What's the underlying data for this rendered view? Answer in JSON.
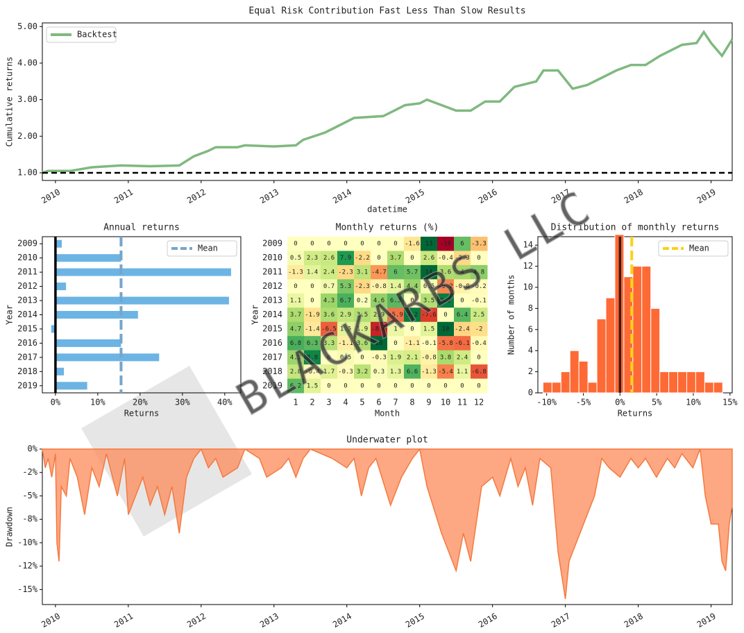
{
  "watermark": "BLACKARBS LLC",
  "chart_data": [
    {
      "type": "line",
      "title": "Equal Risk Contribution Fast Less Than Slow Results",
      "xlabel": "datetime",
      "ylabel": "Cumulative returns",
      "x": [
        2009.82,
        2009.9,
        2010.2,
        2010.5,
        2010.9,
        2011.3,
        2011.7,
        2011.9,
        2012.1,
        2012.2,
        2012.5,
        2012.6,
        2013.0,
        2013.3,
        2013.4,
        2013.7,
        2013.9,
        2014.1,
        2014.5,
        2014.7,
        2014.8,
        2015.0,
        2015.1,
        2015.5,
        2015.7,
        2015.9,
        2016.1,
        2016.3,
        2016.6,
        2016.7,
        2016.9,
        2017.0,
        2017.1,
        2017.3,
        2017.5,
        2017.7,
        2017.9,
        2018.1,
        2018.3,
        2018.6,
        2018.8,
        2018.9,
        2019.0,
        2019.15,
        2019.29
      ],
      "series": [
        {
          "name": "Backtest",
          "color": "#7fb97f",
          "values": [
            1.0,
            1.05,
            1.05,
            1.15,
            1.2,
            1.18,
            1.2,
            1.45,
            1.6,
            1.7,
            1.7,
            1.75,
            1.72,
            1.75,
            1.9,
            2.1,
            2.3,
            2.5,
            2.55,
            2.75,
            2.85,
            2.9,
            3.0,
            2.7,
            2.7,
            2.95,
            2.95,
            3.35,
            3.5,
            3.8,
            3.8,
            3.55,
            3.3,
            3.4,
            3.6,
            3.8,
            3.95,
            3.95,
            4.2,
            4.5,
            4.55,
            4.85,
            4.55,
            4.2,
            4.65
          ]
        }
      ],
      "hline": 1,
      "xlim": [
        2009.82,
        2019.29
      ],
      "xticks": [
        2010,
        2011,
        2012,
        2013,
        2014,
        2015,
        2016,
        2017,
        2018,
        2019
      ],
      "ylim": [
        0.79,
        5.1
      ],
      "yticks": [
        {
          "value": 1,
          "label": "1.00"
        },
        {
          "value": 2,
          "label": "2.00"
        },
        {
          "value": 3,
          "label": "3.00"
        },
        {
          "value": 4,
          "label": "4.00"
        },
        {
          "value": 5,
          "label": "5.00"
        }
      ],
      "legend": "upper left"
    },
    {
      "type": "barh",
      "title": "Annual returns",
      "xlabel": "Returns",
      "ylabel": "Year",
      "color": "#6cb4e4",
      "categories": [
        "2009",
        "2010",
        "2011",
        "2012",
        "2013",
        "2014",
        "2015",
        "2016",
        "2017",
        "2018",
        "2019"
      ],
      "values": [
        1.5,
        15.5,
        41.5,
        2.5,
        41,
        19.5,
        -1,
        15.5,
        24.5,
        2,
        7.5
      ],
      "mean": {
        "name": "Mean",
        "value": 15.5,
        "color": "#76a5cc"
      },
      "xlim": [
        -3.1,
        43.8
      ],
      "xticks": [
        {
          "value": 0,
          "label": "0%"
        },
        {
          "value": 10,
          "label": "10%"
        },
        {
          "value": 20,
          "label": "20%"
        },
        {
          "value": 30,
          "label": "30%"
        },
        {
          "value": 40,
          "label": "40%"
        }
      ],
      "legend": "upper right"
    },
    {
      "type": "heatmap",
      "title": "Monthly returns (%)",
      "xlabel": "Month",
      "ylabel": "Year",
      "colormap": "RdYlGn",
      "clim": [
        -10,
        10
      ],
      "rows": [
        "2009",
        "2010",
        "2011",
        "2012",
        "2013",
        "2014",
        "2015",
        "2016",
        "2017",
        "2018",
        "2019"
      ],
      "columns": [
        1,
        2,
        3,
        4,
        5,
        6,
        7,
        8,
        9,
        10,
        11,
        12
      ],
      "values": [
        [
          0,
          0,
          0,
          0,
          0,
          0,
          0,
          -1.6,
          13,
          -10,
          6,
          -3.3
        ],
        [
          0.5,
          2.3,
          2.6,
          7.9,
          -2.2,
          0,
          3.7,
          0,
          2.6,
          -0.4,
          -2.3,
          0
        ],
        [
          -1.3,
          1.4,
          2.4,
          -2.3,
          3.1,
          -4.7,
          6,
          5.7,
          14,
          3.6,
          4,
          4.8
        ],
        [
          0,
          0,
          0.7,
          5.3,
          -2.3,
          -0.8,
          1.4,
          4.4,
          0.5,
          -5.2,
          -0.8,
          -0.2
        ],
        [
          1.1,
          0,
          4.3,
          6.7,
          0.2,
          4.6,
          6.3,
          0,
          3.5,
          9.2,
          0,
          -0.1
        ],
        [
          3.7,
          -1.9,
          3.6,
          2.9,
          3.5,
          2.9,
          -5.9,
          9.2,
          -7.6,
          0,
          6.4,
          2.5
        ],
        [
          4.7,
          -1.4,
          -6.5,
          1.5,
          1.9,
          -8.6,
          1,
          0,
          1.5,
          10,
          -2.4,
          -2
        ],
        [
          6.8,
          6.3,
          3.3,
          -1.1,
          3.6,
          10,
          0,
          -1.1,
          -0.1,
          -5.8,
          -6.1,
          -0.4
        ],
        [
          4.3,
          8.8,
          0,
          0.5,
          0,
          -0.3,
          1.9,
          2.1,
          -0.8,
          3.8,
          2.4,
          0
        ],
        [
          2.8,
          -0.4,
          1.7,
          -0.3,
          3.2,
          0.3,
          1.3,
          6.6,
          -1.3,
          -5.4,
          1.1,
          -6.8
        ],
        [
          6.2,
          1.5,
          0,
          0,
          0,
          0,
          0,
          0,
          0,
          0,
          0,
          0
        ]
      ]
    },
    {
      "type": "histogram",
      "title": "Distribution of monthly returns",
      "xlabel": "Returns",
      "ylabel": "Number of months",
      "color": "#fe6a35",
      "bins": [
        -10.5,
        -9.275,
        -8.05,
        -6.825,
        -5.6,
        -4.375,
        -3.15,
        -1.925,
        -0.7,
        0.525,
        1.75,
        2.975,
        4.2,
        5.425,
        6.65,
        7.875,
        9.1,
        10.325,
        11.55,
        12.775,
        14.0
      ],
      "values": [
        1,
        1,
        2,
        4,
        3,
        1,
        7,
        9,
        15,
        11,
        12,
        12,
        8,
        2,
        2,
        2,
        2,
        2,
        1,
        1
      ],
      "mean": {
        "name": "Mean",
        "value": 1.6,
        "color": "#fcd116"
      },
      "xlim": [
        -11.2,
        15.3
      ],
      "xticks": [
        {
          "value": -10,
          "label": "-10%"
        },
        {
          "value": -5,
          "label": "-5%"
        },
        {
          "value": 0,
          "label": "0%"
        },
        {
          "value": 5,
          "label": "5%"
        },
        {
          "value": 10,
          "label": "10%"
        },
        {
          "value": 15,
          "label": "15%"
        }
      ],
      "ylim": [
        0,
        14.8
      ],
      "yticks": [
        0,
        2,
        4,
        6,
        8,
        10,
        12,
        14
      ],
      "legend": "upper right"
    },
    {
      "type": "area",
      "title": "Underwater plot",
      "ylabel": "Drawdown",
      "color": "#fe8a5a",
      "x": [
        2009.82,
        2009.86,
        2009.9,
        2009.95,
        2010.0,
        2010.02,
        2010.05,
        2010.08,
        2010.15,
        2010.2,
        2010.3,
        2010.4,
        2010.5,
        2010.6,
        2010.7,
        2010.85,
        2010.95,
        2011.0,
        2011.1,
        2011.2,
        2011.3,
        2011.4,
        2011.5,
        2011.6,
        2011.7,
        2011.8,
        2011.9,
        2012.0,
        2012.1,
        2012.2,
        2012.3,
        2012.5,
        2012.6,
        2012.8,
        2012.9,
        2013.1,
        2013.2,
        2013.3,
        2013.4,
        2013.5,
        2013.8,
        2014.0,
        2014.1,
        2014.2,
        2014.3,
        2014.4,
        2014.6,
        2014.75,
        2014.9,
        2015.0,
        2015.1,
        2015.3,
        2015.5,
        2015.6,
        2015.7,
        2015.85,
        2016.0,
        2016.1,
        2016.25,
        2016.35,
        2016.45,
        2016.55,
        2016.65,
        2016.8,
        2016.9,
        2017.0,
        2017.05,
        2017.2,
        2017.4,
        2017.5,
        2017.6,
        2017.75,
        2017.9,
        2018.0,
        2018.1,
        2018.25,
        2018.4,
        2018.5,
        2018.6,
        2018.75,
        2018.85,
        2018.92,
        2019.0,
        2019.1,
        2019.15,
        2019.2,
        2019.25,
        2019.29
      ],
      "values": [
        0,
        -2,
        -1,
        -3,
        -0.5,
        -10,
        -12,
        -4,
        -5,
        -1,
        -3,
        -7,
        -2,
        -4,
        -0.5,
        -5,
        -1,
        -7,
        -5,
        -3,
        -6,
        -4,
        -7,
        -4,
        -9,
        -3,
        -1,
        0,
        -2,
        -1,
        -3,
        -2,
        0,
        -1,
        -3,
        -2,
        -1,
        -3,
        -1,
        0,
        -1,
        -2,
        -1,
        -5,
        -2,
        -1,
        -6,
        -3,
        -1,
        0,
        -4,
        -9,
        -13,
        -9,
        -12,
        -4,
        -3,
        -5,
        -1,
        -4,
        -2,
        -6,
        -1,
        -2,
        -11,
        -16,
        -12,
        -9,
        -5,
        -1,
        -2,
        -3,
        -1,
        -2,
        -1,
        -3,
        -1,
        -2,
        -0.5,
        -2,
        0,
        -5,
        -8,
        -8,
        -12,
        -13,
        -8,
        -6
      ],
      "xlim": [
        2009.82,
        2019.29
      ],
      "xticks": [
        2010,
        2011,
        2012,
        2013,
        2014,
        2015,
        2016,
        2017,
        2018,
        2019
      ],
      "ylim": [
        -16.6,
        0
      ],
      "yticks": [
        {
          "value": 0,
          "label": "0%"
        },
        {
          "value": -2.5,
          "label": "-2%"
        },
        {
          "value": -5,
          "label": "-5%"
        },
        {
          "value": -7.5,
          "label": "-8%"
        },
        {
          "value": -10,
          "label": "-10%"
        },
        {
          "value": -12.5,
          "label": "-12%"
        },
        {
          "value": -15,
          "label": "-15%"
        }
      ]
    }
  ]
}
